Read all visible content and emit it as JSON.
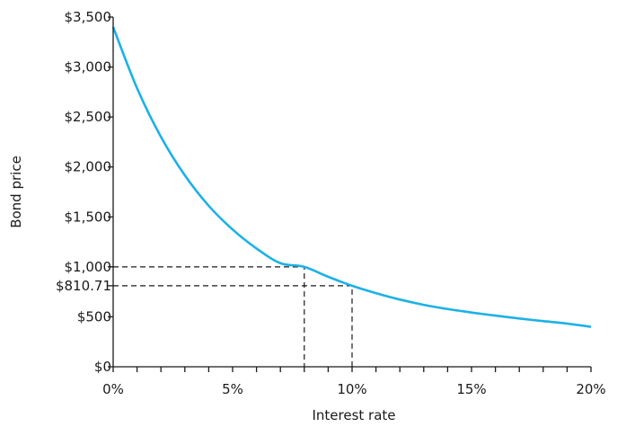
{
  "chart_data": {
    "type": "line",
    "xlabel": "Interest rate",
    "ylabel": "Bond price",
    "xlim": [
      0,
      20
    ],
    "ylim": [
      0,
      3500
    ],
    "x_ticks": [
      0,
      1,
      2,
      3,
      4,
      5,
      6,
      7,
      8,
      9,
      10,
      11,
      12,
      13,
      14,
      15,
      16,
      17,
      18,
      19,
      20
    ],
    "x_tick_labels": [
      {
        "value": 0,
        "label": "0%"
      },
      {
        "value": 5,
        "label": "5%"
      },
      {
        "value": 10,
        "label": "10%"
      },
      {
        "value": 15,
        "label": "15%"
      },
      {
        "value": 20,
        "label": "20%"
      }
    ],
    "y_tick_labels": [
      {
        "value": 0,
        "label": "$0"
      },
      {
        "value": 500,
        "label": "$500"
      },
      {
        "value": 1000,
        "label": "$1,000"
      },
      {
        "value": 1500,
        "label": "$1,500"
      },
      {
        "value": 2000,
        "label": "$2,000"
      },
      {
        "value": 2500,
        "label": "$2,500"
      },
      {
        "value": 3000,
        "label": "$3,000"
      },
      {
        "value": 3500,
        "label": "$3,500"
      }
    ],
    "series": [
      {
        "color": "#1cb1e6",
        "x": [
          0,
          1,
          2,
          3,
          4,
          5,
          6,
          7,
          8,
          9,
          10,
          11,
          12,
          13,
          14,
          15,
          16,
          17,
          18,
          19,
          20
        ],
        "y": [
          3400,
          2788,
          2301,
          1916,
          1611,
          1374,
          1184,
          1037,
          1000,
          901,
          810.71,
          737,
          673,
          620,
          578,
          543,
          512,
          483,
          457,
          432,
          400
        ]
      }
    ],
    "reference_points": [
      {
        "x": 8,
        "y": 1000
      },
      {
        "x": 10,
        "y": 810.71,
        "label": "$810.71"
      }
    ],
    "grid": false,
    "legend": "none"
  }
}
